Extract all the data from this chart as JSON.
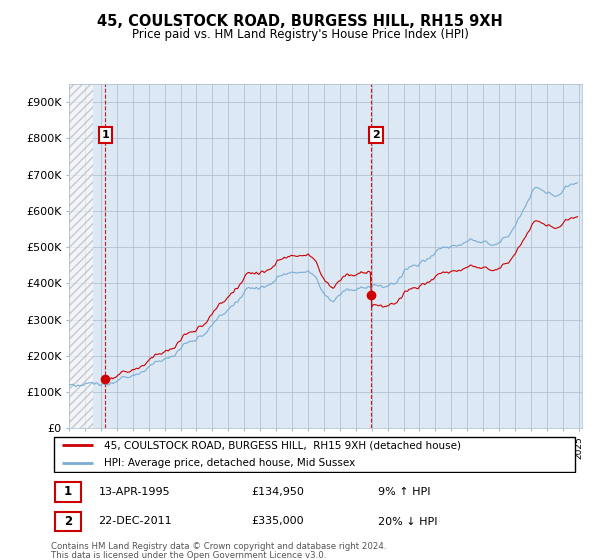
{
  "title": "45, COULSTOCK ROAD, BURGESS HILL, RH15 9XH",
  "subtitle": "Price paid vs. HM Land Registry's House Price Index (HPI)",
  "ylim": [
    0,
    950000
  ],
  "yticks": [
    0,
    100000,
    200000,
    300000,
    400000,
    500000,
    600000,
    700000,
    800000,
    900000
  ],
  "ytick_labels": [
    "£0",
    "£100K",
    "£200K",
    "£300K",
    "£400K",
    "£500K",
    "£600K",
    "£700K",
    "£800K",
    "£900K"
  ],
  "sale1_yr": 1995.29,
  "sale1_price": 134950,
  "sale2_yr": 2011.97,
  "sale2_price": 335000,
  "legend_line1": "45, COULSTOCK ROAD, BURGESS HILL,  RH15 9XH (detached house)",
  "legend_line2": "HPI: Average price, detached house, Mid Sussex",
  "footer1": "Contains HM Land Registry data © Crown copyright and database right 2024.",
  "footer2": "This data is licensed under the Open Government Licence v3.0.",
  "note1_label": "1",
  "note1_date": "13-APR-1995",
  "note1_price": "£134,950",
  "note1_pct": "9% ↑ HPI",
  "note2_label": "2",
  "note2_date": "22-DEC-2011",
  "note2_price": "£335,000",
  "note2_pct": "20% ↓ HPI",
  "hpi_color": "#7aadd4",
  "sale_color": "#cc0000",
  "vline_color": "#cc0000",
  "chart_bg": "#dde8f5",
  "background_color": "#ffffff",
  "grid_color": "#aabbcc"
}
